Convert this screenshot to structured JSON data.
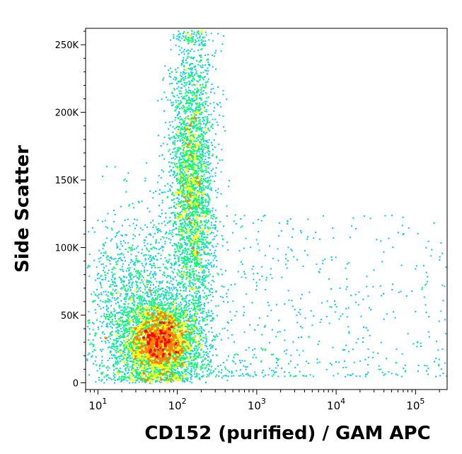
{
  "chart_data": {
    "type": "scatter",
    "style": "density-dot-plot",
    "xlabel": "CD152 (purified) / GAM APC",
    "ylabel": "Side Scatter",
    "x_scale": "log",
    "x_range": [
      7,
      250000
    ],
    "y_range": [
      -5000,
      262144
    ],
    "x_ticks": [
      {
        "value": 10,
        "base": "10",
        "exp": "1"
      },
      {
        "value": 100,
        "base": "10",
        "exp": "2"
      },
      {
        "value": 1000,
        "base": "10",
        "exp": "3"
      },
      {
        "value": 10000,
        "base": "10",
        "exp": "4"
      },
      {
        "value": 100000,
        "base": "10",
        "exp": "5"
      }
    ],
    "y_ticks": [
      {
        "value": 0,
        "label": "0"
      },
      {
        "value": 50000,
        "label": "50K"
      },
      {
        "value": 100000,
        "label": "100K"
      },
      {
        "value": 150000,
        "label": "150K"
      },
      {
        "value": 200000,
        "label": "200K"
      },
      {
        "value": 250000,
        "label": "250K"
      }
    ],
    "populations": [
      {
        "x_center": 60,
        "x_spread_decades": 0.22,
        "y_center": 30000,
        "y_spread": 14000,
        "fraction": 0.45
      },
      {
        "x_center": 150,
        "x_spread_decades": 0.14,
        "y_center": 150000,
        "y_spread": 55000,
        "fraction": 0.35
      },
      {
        "x_center": 30,
        "x_spread_decades": 0.35,
        "y_center": 55000,
        "y_spread": 35000,
        "fraction": 0.2
      }
    ],
    "grid": false,
    "legend": "none",
    "colors": {
      "low": "#0000ff",
      "mid_low": "#00c8ff",
      "mid": "#00ff66",
      "mid_high": "#ffff00",
      "high": "#ff8000",
      "peak": "#ff0000"
    }
  }
}
